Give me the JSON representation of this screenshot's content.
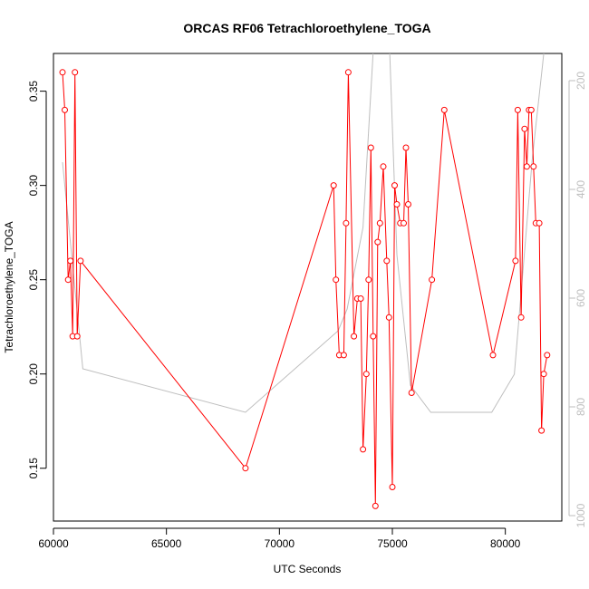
{
  "chart_data": {
    "type": "line",
    "title": "ORCAS RF06 Tetrachloroethylene_TOGA",
    "xlabel": "UTC Seconds",
    "ylabel": "Tetrachloroethylene_TOGA",
    "xlim": [
      60000,
      82500
    ],
    "ylim": [
      0.122,
      0.37
    ],
    "y2lim": [
      1010,
      150
    ],
    "x_ticks": [
      60000,
      65000,
      70000,
      75000,
      80000
    ],
    "x_tick_labels": [
      "60000",
      "65000",
      "70000",
      "75000",
      "80000"
    ],
    "y_ticks": [
      0.15,
      0.2,
      0.25,
      0.3,
      0.35
    ],
    "y_tick_labels": [
      "0.15",
      "0.20",
      "0.25",
      "0.30",
      "0.35"
    ],
    "y2_ticks": [
      200,
      400,
      600,
      800,
      1000
    ],
    "y2_tick_labels": [
      "200",
      "400",
      "600",
      "800",
      "1000"
    ],
    "grid": false,
    "colors": {
      "primary": "#ff0000",
      "secondary": "#bebebe",
      "axis": "#000000"
    },
    "series": [
      {
        "role": "primary",
        "axis": "left",
        "x": [
          60400,
          60500,
          60650,
          60750,
          60850,
          60950,
          61050,
          61200,
          68500,
          72400,
          72500,
          72650,
          72850,
          72950,
          73050,
          73300,
          73450,
          73600,
          73700,
          73850,
          73950,
          74050,
          74150,
          74250,
          74350,
          74450,
          74600,
          74750,
          74850,
          75000,
          75100,
          75200,
          75350,
          75500,
          75600,
          75700,
          75850,
          76750,
          77300,
          79450,
          80450,
          80550,
          80700,
          80850,
          80950,
          81050,
          81150,
          81250,
          81350,
          81500,
          81600,
          81700,
          81850
        ],
        "y": [
          0.36,
          0.34,
          0.25,
          0.26,
          0.22,
          0.36,
          0.22,
          0.26,
          0.15,
          0.3,
          0.25,
          0.21,
          0.21,
          0.28,
          0.36,
          0.22,
          0.24,
          0.24,
          0.16,
          0.2,
          0.25,
          0.32,
          0.22,
          0.13,
          0.27,
          0.28,
          0.31,
          0.26,
          0.23,
          0.14,
          0.3,
          0.29,
          0.28,
          0.28,
          0.32,
          0.29,
          0.19,
          0.25,
          0.34,
          0.21,
          0.26,
          0.34,
          0.23,
          0.33,
          0.31,
          0.34,
          0.34,
          0.31,
          0.28,
          0.28,
          0.17,
          0.2,
          0.21
        ]
      },
      {
        "role": "secondary",
        "axis": "right",
        "x": [
          60400,
          61300,
          68500,
          72600,
          73000,
          73700,
          74200,
          74850,
          75200,
          75800,
          76700,
          77500,
          78500,
          79400,
          80400,
          80800,
          81200,
          81650,
          81850
        ],
        "y": [
          350,
          730,
          810,
          660,
          620,
          470,
          110,
          110,
          520,
          760,
          810,
          810,
          810,
          810,
          740,
          540,
          340,
          170,
          90
        ]
      }
    ]
  }
}
